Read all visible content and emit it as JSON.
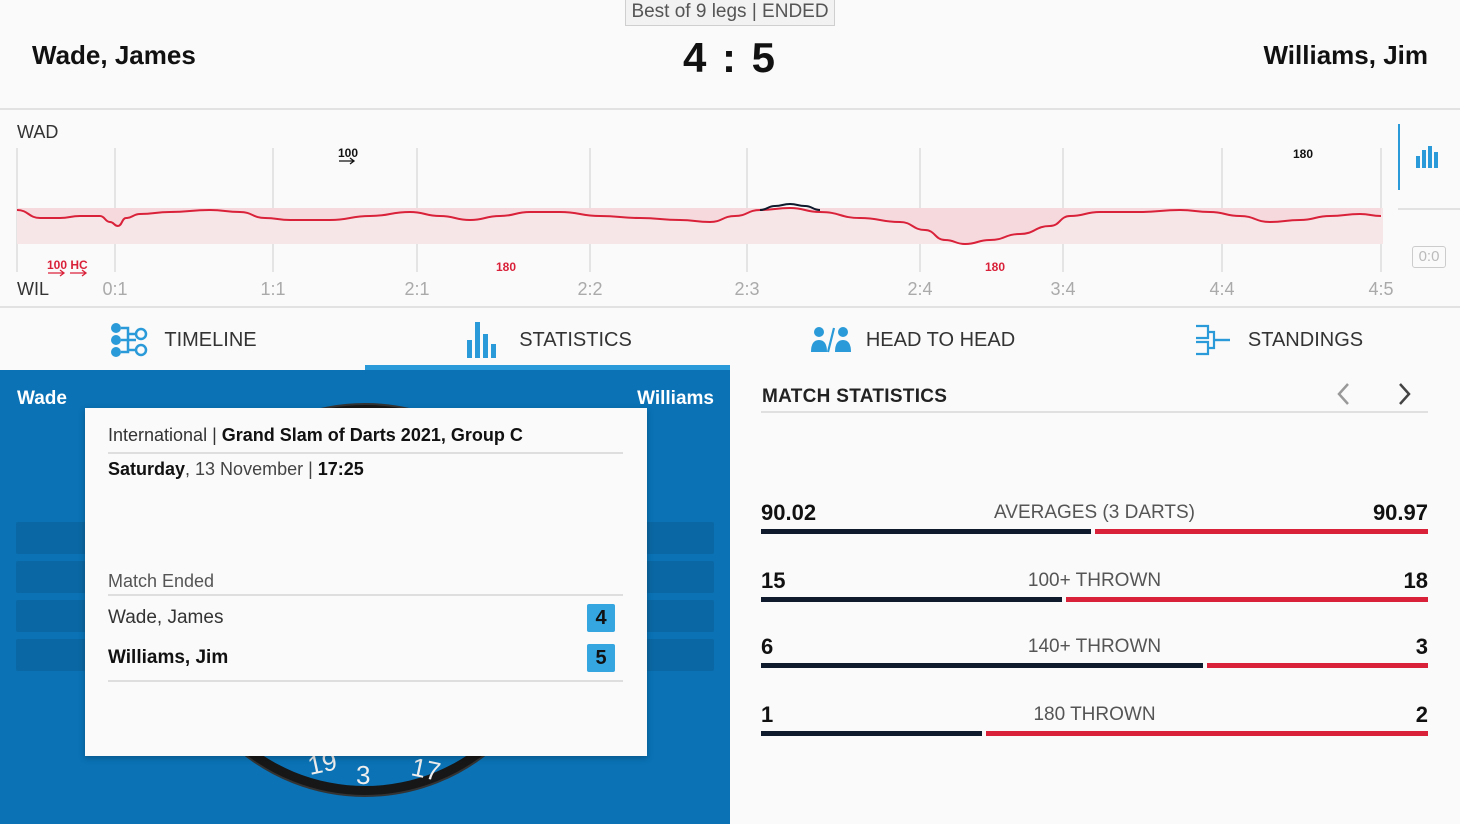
{
  "header": {
    "best_of": "Best of 9 legs | ENDED",
    "home_player": "Wade, James",
    "away_player": "Williams, Jim",
    "score": "4 : 5"
  },
  "timeline": {
    "home_label": "WAD",
    "away_label": "WIL",
    "leg_labels": [
      "0:1",
      "1:1",
      "2:1",
      "2:2",
      "2:3",
      "2:4",
      "3:4",
      "4:4",
      "4:5"
    ],
    "events": [
      {
        "label": "100",
        "side": "home",
        "arrow": true
      },
      {
        "label": "180",
        "side": "home",
        "arrow": false
      },
      {
        "label": "100 HC",
        "side": "away",
        "arrow": true
      },
      {
        "label": "180",
        "side": "away",
        "arrow": false
      },
      {
        "label": "180",
        "side": "away",
        "arrow": false
      }
    ],
    "zero_box": "0:0",
    "colors": {
      "home_line": "#0f1b2d",
      "away_line": "#d9223a",
      "away_fill": "#f6dfe2"
    }
  },
  "tabs": [
    {
      "label": "TIMELINE",
      "icon": "timeline-icon",
      "active": false
    },
    {
      "label": "STATISTICS",
      "icon": "statistics-icon",
      "active": true
    },
    {
      "label": "HEAD TO HEAD",
      "icon": "head-to-head-icon",
      "active": false
    },
    {
      "label": "STANDINGS",
      "icon": "standings-icon",
      "active": false
    }
  ],
  "board": {
    "home_short": "Wade",
    "away_short": "Williams",
    "numbers": [
      "19",
      "3",
      "17"
    ]
  },
  "card": {
    "category": "International",
    "competition": "Grand Slam of Darts 2021, Group C",
    "weekday": "Saturday",
    "date": ", 13 November | ",
    "time": "17:25",
    "status": "Match Ended",
    "home_player": "Wade, James",
    "home_score": "4",
    "away_player": "Williams, Jim",
    "away_score": "5"
  },
  "match_statistics": {
    "title": "MATCH STATISTICS",
    "rows": [
      {
        "label": "AVERAGES (3 DARTS)",
        "home": "90.02",
        "away": "90.97",
        "home_value": 90.02,
        "away_value": 90.97
      },
      {
        "label": "100+ THROWN",
        "home": "15",
        "away": "18",
        "home_value": 15,
        "away_value": 18
      },
      {
        "label": "140+ THROWN",
        "home": "6",
        "away": "3",
        "home_value": 6,
        "away_value": 3
      },
      {
        "label": "180 THROWN",
        "home": "1",
        "away": "2",
        "home_value": 1,
        "away_value": 2
      }
    ]
  }
}
